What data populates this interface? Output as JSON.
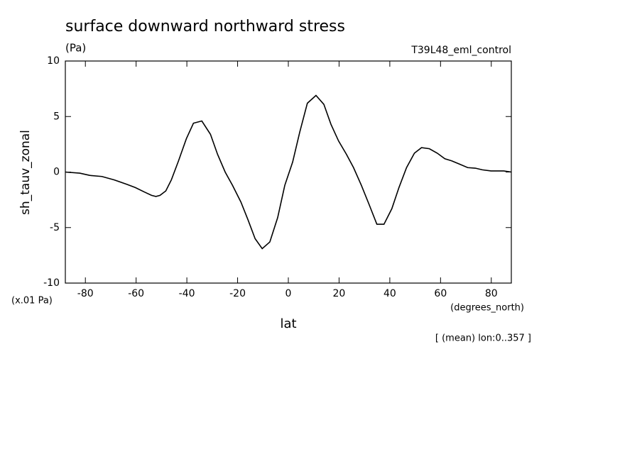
{
  "chart_data": {
    "type": "line",
    "title": "surface downward northward stress",
    "units": "(Pa)",
    "dataset": "T39L48_eml_control",
    "y_label": "sh_tauv_zonal",
    "y_units": "(x.01 Pa)",
    "x_label": "lat",
    "x_units": "(degrees_north)",
    "note": "[ (mean) lon:0..357 ]",
    "x": [
      -87.9,
      -82.2,
      -78.3,
      -73.5,
      -68.7,
      -63.7,
      -60.3,
      -56.7,
      -53.9,
      -52.2,
      -50.6,
      -48.3,
      -46.1,
      -43.3,
      -40.2,
      -37.4,
      -34.1,
      -30.7,
      -27.9,
      -24.9,
      -22,
      -18.7,
      -15.9,
      -13.1,
      -10.3,
      -7.3,
      -4.2,
      -1.4,
      1.7,
      4.5,
      7.5,
      10.9,
      14,
      16.8,
      19.8,
      22.9,
      25.7,
      28.8,
      31.8,
      34.9,
      37.7,
      40.8,
      43.6,
      46.6,
      49.7,
      52.5,
      55.6,
      58.7,
      61.7,
      64.5,
      67.6,
      70.7,
      73.7,
      76.5,
      79.9,
      84.9,
      87.9
    ],
    "series": [
      {
        "name": "sh_tauv_zonal",
        "color": "#000000",
        "values": [
          0,
          -0.1,
          -0.3,
          -0.4,
          -0.7,
          -1.1,
          -1.4,
          -1.8,
          -2.1,
          -2.2,
          -2.1,
          -1.7,
          -0.7,
          1.0,
          3.0,
          4.4,
          4.6,
          3.4,
          1.6,
          0,
          -1.2,
          -2.7,
          -4.3,
          -6.0,
          -6.9,
          -6.3,
          -4.1,
          -1.2,
          0.9,
          3.6,
          6.2,
          6.9,
          6.1,
          4.3,
          2.8,
          1.6,
          0.4,
          -1.2,
          -2.9,
          -4.7,
          -4.7,
          -3.3,
          -1.4,
          0.4,
          1.7,
          2.2,
          2.1,
          1.7,
          1.2,
          1.0,
          0.7,
          0.4,
          0.35,
          0.2,
          0.1,
          0.1,
          0
        ]
      }
    ],
    "xlim": [
      -87.9,
      87.9
    ],
    "xticks": [
      -80,
      -60,
      -40,
      -20,
      0,
      20,
      40,
      60,
      80
    ],
    "ylim": [
      -10,
      10
    ],
    "yticks": [
      -10,
      -5,
      0,
      5,
      10
    ]
  }
}
